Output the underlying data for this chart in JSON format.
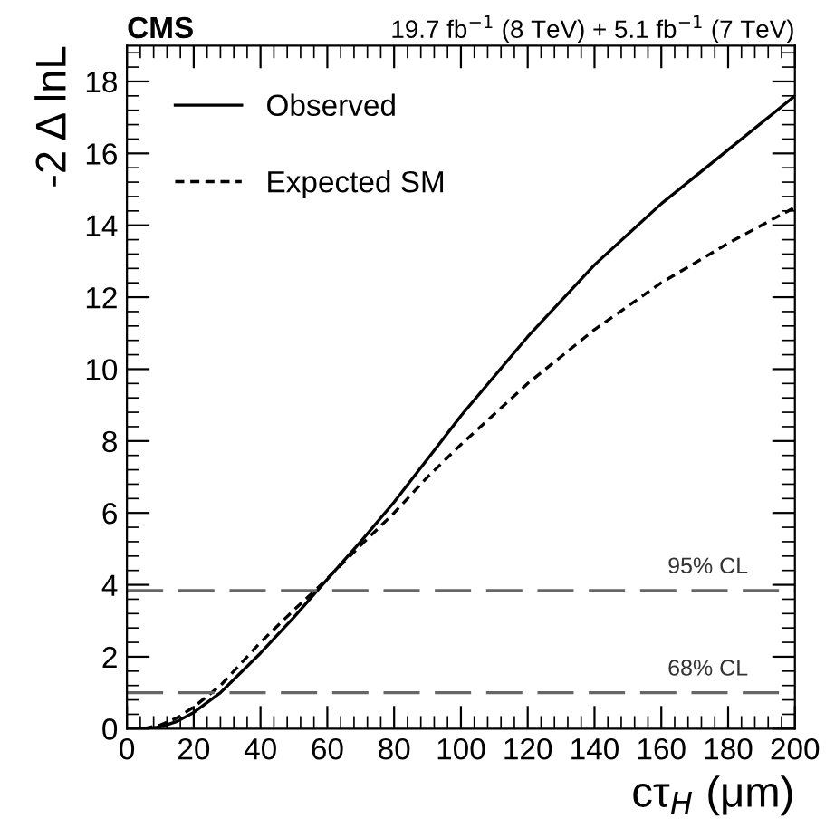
{
  "chart_data": {
    "type": "line",
    "title": "CMS",
    "subtitle": "19.7 fb$^{−1}$ (8 TeV) + 5.1 fb$^{−1}$ (7 TeV)",
    "xlabel": "cτ$_{H}$ (μm)",
    "ylabel": "-2 Δ lnL",
    "x": [
      5,
      10,
      15,
      20,
      28,
      40,
      50,
      57,
      70,
      80,
      90,
      100,
      120,
      140,
      160,
      180,
      200
    ],
    "series": [
      {
        "name": "Observed",
        "color": "#000000",
        "line_style": "solid",
        "values": [
          0,
          0.05,
          0.2,
          0.45,
          1.0,
          2.1,
          3.1,
          3.84,
          5.2,
          6.3,
          7.5,
          8.7,
          10.9,
          12.9,
          14.6,
          16.1,
          17.6
        ]
      },
      {
        "name": "Expected SM",
        "color": "#000000",
        "line_style": "dotted",
        "values": [
          0,
          0.1,
          0.3,
          0.6,
          1.2,
          2.4,
          3.3,
          3.9,
          5.1,
          6.0,
          7.0,
          7.9,
          9.6,
          11.1,
          12.4,
          13.5,
          14.5
        ]
      }
    ],
    "xlim": [
      0,
      200
    ],
    "xticks": [
      0,
      20,
      40,
      60,
      80,
      100,
      120,
      140,
      160,
      180,
      200
    ],
    "ylim": [
      0,
      19
    ],
    "yticks": [
      0,
      2,
      4,
      6,
      8,
      10,
      12,
      14,
      16,
      18
    ],
    "ref_lines": [
      {
        "axis": "y",
        "value": 3.84,
        "label": "95% CL",
        "color": "#666666",
        "line_style": "dashed"
      },
      {
        "axis": "y",
        "value": 1.0,
        "label": "68% CL",
        "color": "#666666",
        "line_style": "dashed"
      }
    ],
    "grid": false,
    "legend": "top left"
  }
}
